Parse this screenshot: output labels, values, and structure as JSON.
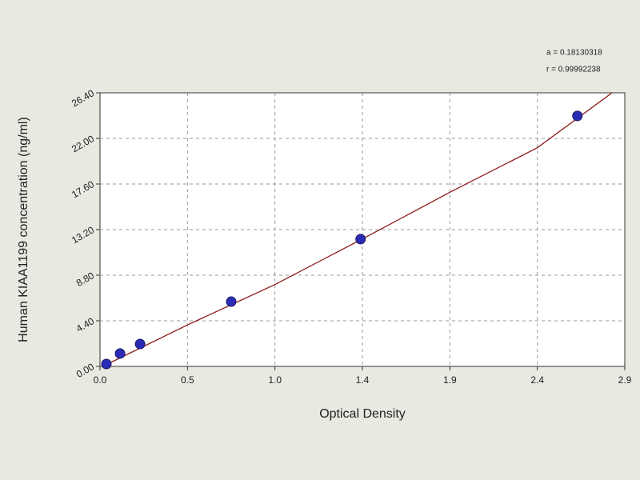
{
  "chart_data": {
    "type": "scatter",
    "x_label": "Optical Density",
    "y_label": "Human  KIAA1199 concentration (ng/ml)",
    "annotations": [
      "a = 0.18130318",
      "r = 0.99992238"
    ],
    "x": [
      0.035,
      0.11,
      0.22,
      0.72,
      1.43,
      2.62
    ],
    "values": [
      0.23,
      1.24,
      2.16,
      6.25,
      12.28,
      24.17
    ],
    "color": "#2b2bb5",
    "curve": {
      "x": [
        0.015,
        0.48,
        0.96,
        1.44,
        1.92,
        2.4,
        2.81
      ],
      "values": [
        0.0,
        4.0,
        7.9,
        12.3,
        16.8,
        21.1,
        26.4
      ],
      "color": "#8b1a1a"
    },
    "xlim": [
      0,
      2.88
    ],
    "xticks": [
      {
        "value": 0,
        "label": "0.0"
      },
      {
        "value": 0.48,
        "label": "0.5"
      },
      {
        "value": 0.96,
        "label": "1.0"
      },
      {
        "value": 1.44,
        "label": "1.4"
      },
      {
        "value": 1.92,
        "label": "1.9"
      },
      {
        "value": 2.4,
        "label": "2.4"
      },
      {
        "value": 2.88,
        "label": "2.9"
      }
    ],
    "ylim": [
      0,
      26.4
    ],
    "yticks": [
      {
        "value": 0,
        "label": "0.00"
      },
      {
        "value": 4.4,
        "label": "4.40"
      },
      {
        "value": 8.8,
        "label": "8.80"
      },
      {
        "value": 13.2,
        "label": "13.20"
      },
      {
        "value": 17.6,
        "label": "17.60"
      },
      {
        "value": 22,
        "label": "22.00"
      },
      {
        "value": 26.4,
        "label": "26.40"
      }
    ],
    "grid": true
  }
}
